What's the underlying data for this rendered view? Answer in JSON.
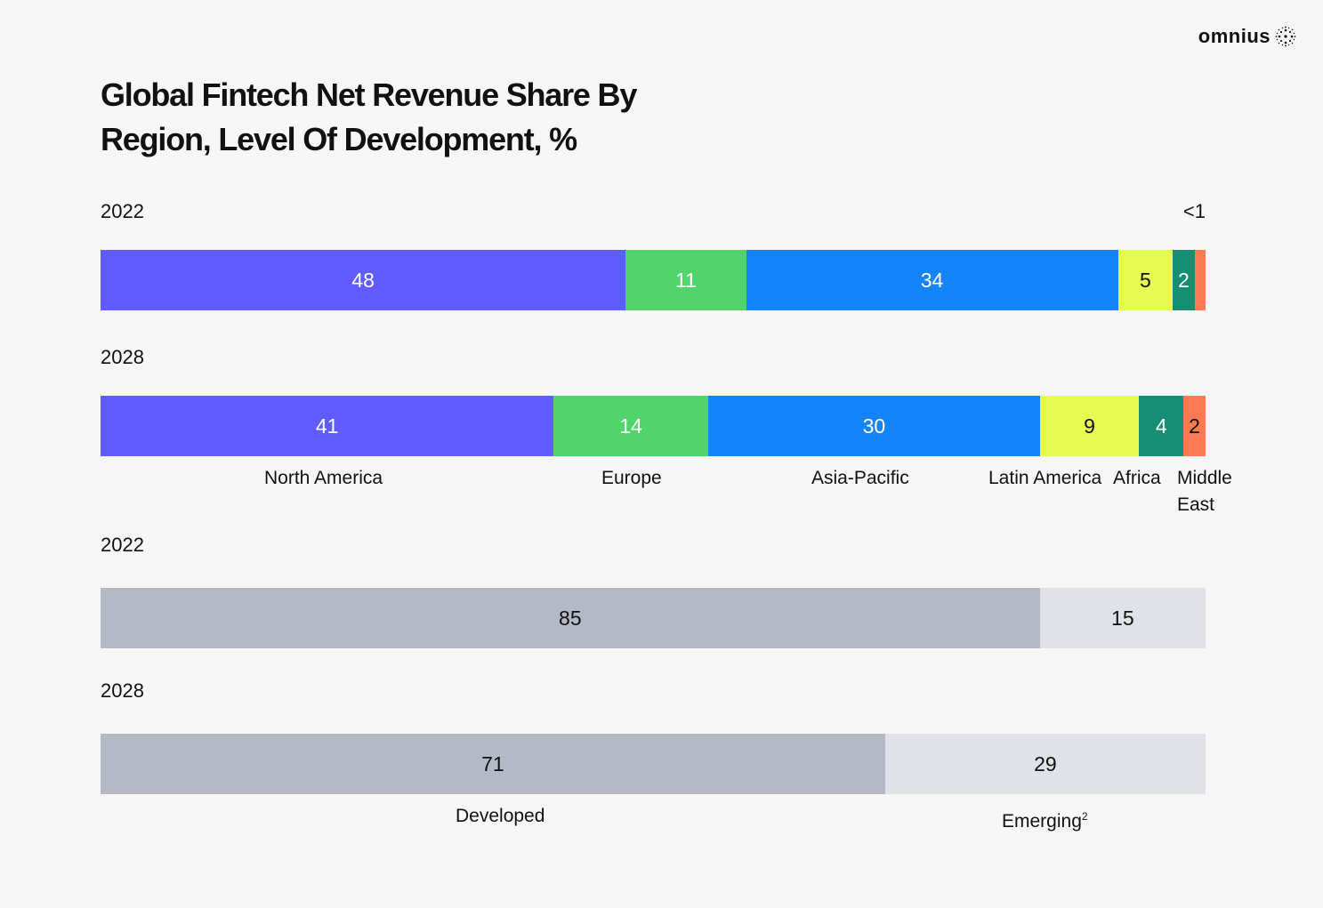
{
  "brand": {
    "name": "omnius"
  },
  "chart_data": [
    {
      "type": "bar",
      "orientation": "horizontal",
      "stacked": true,
      "title": "Global Fintech Net Revenue Share By Region, Level Of Development, %",
      "categories": [
        "2022",
        "2028"
      ],
      "series": [
        {
          "name": "North America",
          "color": "#615cff",
          "text_color": "#ffffff",
          "values": [
            48,
            41
          ]
        },
        {
          "name": "Europe",
          "color": "#52d46c",
          "text_color": "#ffffff",
          "values": [
            11,
            14
          ]
        },
        {
          "name": "Asia-Pacific",
          "color": "#1584fb",
          "text_color": "#ffffff",
          "values": [
            34,
            30
          ]
        },
        {
          "name": "Latin America",
          "color": "#e6fb52",
          "text_color": "#111111",
          "values": [
            5,
            9
          ]
        },
        {
          "name": "Africa",
          "color": "#168e74",
          "text_color": "#ffffff",
          "values": [
            2,
            4
          ]
        },
        {
          "name": "Middle East",
          "color": "#ff7a52",
          "text_color": "#111111",
          "values": [
            1,
            2
          ]
        }
      ],
      "data_labels": [
        [
          "48",
          "11",
          "34",
          "5",
          "2",
          ""
        ],
        [
          "41",
          "14",
          "30",
          "9",
          "4",
          "2"
        ]
      ],
      "annotations": [
        {
          "category": "2022",
          "series": "Middle East",
          "text": "<1"
        }
      ]
    },
    {
      "type": "bar",
      "orientation": "horizontal",
      "stacked": true,
      "categories": [
        "2022",
        "2028"
      ],
      "series": [
        {
          "name": "Developed",
          "color": "#b4bac5",
          "text_color": "#111111",
          "values": [
            85,
            71
          ]
        },
        {
          "name": "Emerging",
          "footnote": "2",
          "color": "#dfe2e8",
          "text_color": "#111111",
          "values": [
            15,
            29
          ]
        }
      ],
      "data_labels": [
        [
          "85",
          "15"
        ],
        [
          "71",
          "29"
        ]
      ]
    }
  ]
}
